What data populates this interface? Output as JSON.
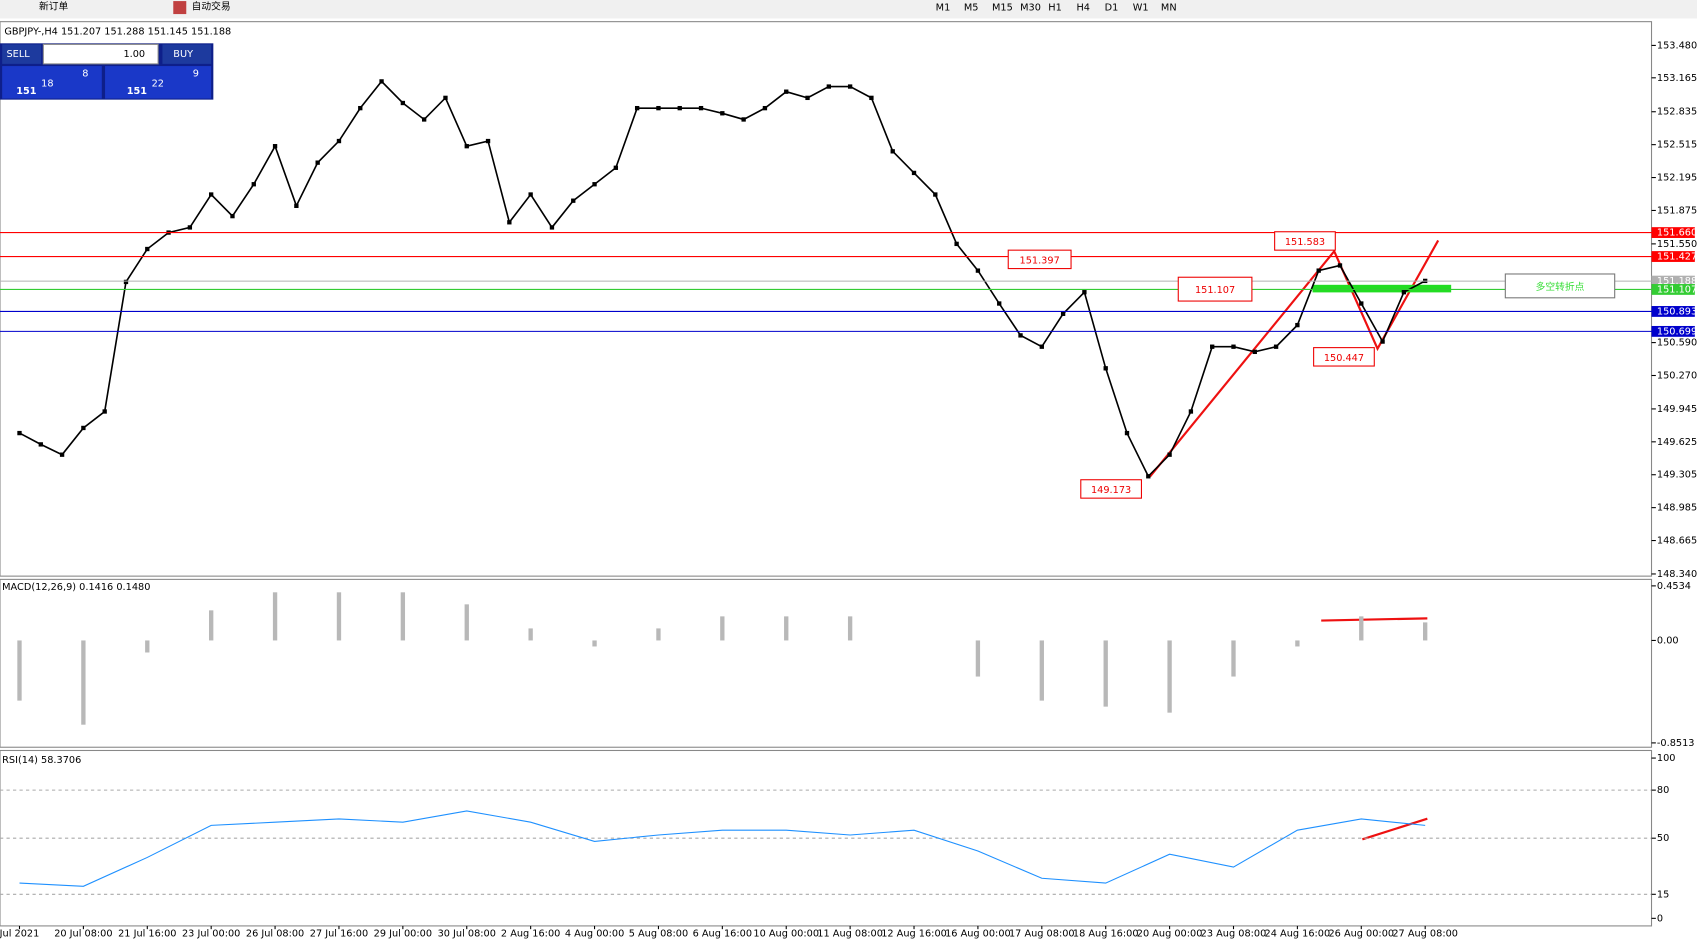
{
  "toolbar": {
    "new_order": "新订单",
    "auto_trading": "自动交易",
    "timeframes": [
      "M1",
      "M5",
      "M15",
      "M30",
      "H1",
      "H4",
      "D1",
      "W1",
      "MN"
    ]
  },
  "order_panel": {
    "sell": "SELL",
    "buy": "BUY",
    "lots": "1.00",
    "sell_price": {
      "prefix": "151",
      "big": "18",
      "sup": "8"
    },
    "buy_price": {
      "prefix": "151",
      "big": "22",
      "sup": "9"
    }
  },
  "chart_data": [
    {
      "type": "line",
      "title": "GBPJPY-,H4  151.207 151.288 151.145 151.188",
      "color": "#000000",
      "categories": [
        "Jul 2021",
        null,
        null,
        "20 Jul 08:00",
        null,
        null,
        "21 Jul 16:00",
        null,
        null,
        "23 Jul 00:00",
        null,
        null,
        "26 Jul 08:00",
        null,
        null,
        "27 Jul 16:00",
        null,
        null,
        "29 Jul 00:00",
        null,
        null,
        "30 Jul 08:00",
        null,
        null,
        "2 Aug 16:00",
        null,
        null,
        "4 Aug 00:00",
        null,
        null,
        "5 Aug 08:00",
        null,
        null,
        "6 Aug 16:00",
        null,
        null,
        "10 Aug 00:00",
        null,
        null,
        "11 Aug 08:00",
        null,
        null,
        "12 Aug 16:00",
        null,
        null,
        "16 Aug 00:00",
        null,
        null,
        "17 Aug 08:00",
        null,
        null,
        "18 Aug 16:00",
        null,
        null,
        "20 Aug 00:00",
        null,
        null,
        "23 Aug 08:00",
        null,
        null,
        "24 Aug 16:00",
        null,
        null,
        "26 Aug 00:00",
        null,
        null,
        "27 Aug 08:00",
        null,
        null
      ],
      "values": [
        149.71,
        149.6,
        149.5,
        149.76,
        149.92,
        151.18,
        151.5,
        151.66,
        151.71,
        152.03,
        151.82,
        152.13,
        152.5,
        151.92,
        152.34,
        152.55,
        152.87,
        153.13,
        152.92,
        152.76,
        152.97,
        152.5,
        152.55,
        151.76,
        152.03,
        151.71,
        151.97,
        152.13,
        152.29,
        152.87,
        152.87,
        152.87,
        152.87,
        152.82,
        152.76,
        152.87,
        153.03,
        152.97,
        153.08,
        153.08,
        152.97,
        152.45,
        152.24,
        152.03,
        151.55,
        151.29,
        150.97,
        150.66,
        150.55,
        150.87,
        151.08,
        150.34,
        149.71,
        149.29,
        149.5,
        149.92,
        150.55,
        150.55,
        150.5,
        150.55,
        150.76,
        151.29,
        151.34,
        150.97,
        150.6,
        151.08,
        151.19,
        null,
        null
      ],
      "ylim": [
        148.34,
        153.69
      ],
      "yticks": [
        {
          "value": 153.48,
          "label": "153.480"
        },
        {
          "value": 153.165,
          "label": "153.165"
        },
        {
          "value": 152.835,
          "label": "152.835"
        },
        {
          "value": 152.515,
          "label": "152.515"
        },
        {
          "value": 152.195,
          "label": "152.195"
        },
        {
          "value": 151.875,
          "label": "151.875"
        },
        {
          "value": 151.55,
          "label": "151.550"
        },
        {
          "value": 150.59,
          "label": "150.590"
        },
        {
          "value": 150.27,
          "label": "150.270"
        },
        {
          "value": 149.945,
          "label": "149.945"
        },
        {
          "value": 149.625,
          "label": "149.625"
        },
        {
          "value": 149.305,
          "label": "149.305"
        },
        {
          "value": 148.985,
          "label": "148.985"
        },
        {
          "value": 148.665,
          "label": "148.665"
        },
        {
          "value": 148.34,
          "label": "148.340"
        }
      ],
      "price_lines": [
        {
          "value": 151.66,
          "label": "151.660",
          "color": "#ff0000"
        },
        {
          "value": 151.427,
          "label": "151.427",
          "color": "#ff0000"
        },
        {
          "value": 151.188,
          "label": "151.188",
          "color": "#b0b0b0"
        },
        {
          "value": 151.107,
          "label": "151.107",
          "color": "#33cc33"
        },
        {
          "value": 150.893,
          "label": "150.893",
          "color": "#0000cc"
        },
        {
          "value": 150.699,
          "label": "150.699",
          "color": "#0000cc"
        }
      ],
      "annotations": [
        "151.583",
        "151.397",
        "151.107",
        "150.447",
        "149.173",
        "多空转折点"
      ]
    },
    {
      "type": "bar",
      "title": "MACD(12,26,9) 0.1416 0.1480",
      "color": "#b8b8b8",
      "values": [
        -0.5,
        -0.7,
        -0.1,
        0.25,
        0.4,
        0.4,
        0.4,
        0.3,
        0.1,
        -0.05,
        0.1,
        0.2,
        0.2,
        0.2,
        0.0,
        -0.3,
        -0.5,
        -0.55,
        -0.6,
        -0.3,
        -0.05,
        0.2,
        0.15
      ],
      "ylim": [
        -0.8513,
        0.4534
      ],
      "yticks": [
        {
          "value": 0.4534,
          "label": "0.4534"
        },
        {
          "value": 0,
          "label": "0.00"
        },
        {
          "value": -0.8513,
          "label": "-0.8513"
        }
      ]
    },
    {
      "type": "line",
      "title": "RSI(14) 58.3706",
      "color": "#1e90ff",
      "values": [
        22,
        20,
        38,
        58,
        60,
        62,
        60,
        67,
        60,
        48,
        52,
        55,
        55,
        52,
        55,
        42,
        25,
        22,
        40,
        32,
        55,
        62,
        58
      ],
      "ylim": [
        0,
        100
      ],
      "yticks": [
        0,
        15,
        50,
        80,
        100
      ]
    }
  ]
}
